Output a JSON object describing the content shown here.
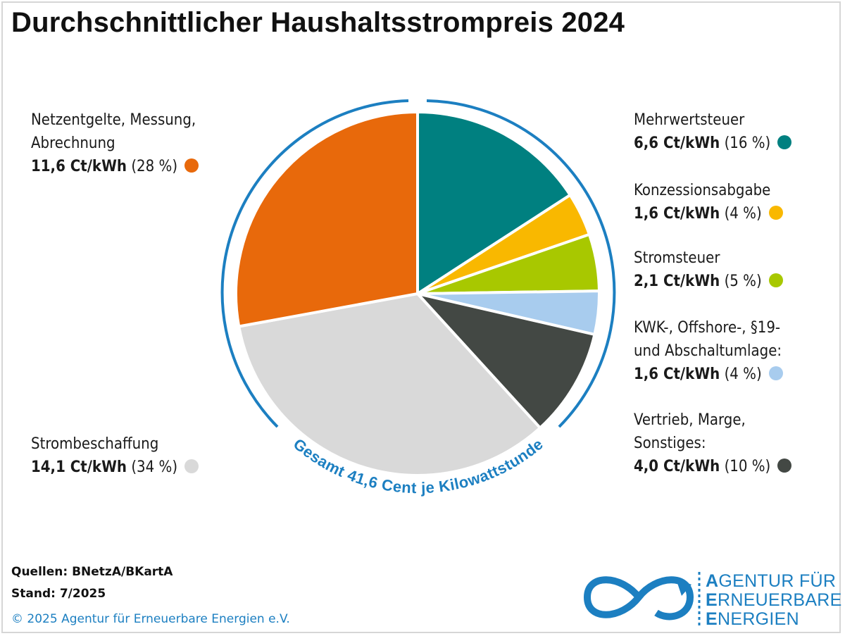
{
  "title": "Durchschnittlicher Haushaltsstrompreis 2024",
  "chart_data": {
    "type": "pie",
    "title": "Durchschnittlicher Haushaltsstrompreis 2024",
    "unit": "Ct/kWh",
    "total_label": "Gesamt 41,6 Cent je Kilowattstunde",
    "slices": [
      {
        "label": "Mehrwertsteuer",
        "value": 6.6,
        "percent": 16,
        "value_text": "6,6 Ct/kWh",
        "percent_text": "(16 %)",
        "color": "#008080"
      },
      {
        "label": "Konzessionsabgabe",
        "value": 1.6,
        "percent": 4,
        "value_text": "1,6 Ct/kWh",
        "percent_text": "(4 %)",
        "color": "#f9b800"
      },
      {
        "label": "Stromsteuer",
        "value": 2.1,
        "percent": 5,
        "value_text": "2,1 Ct/kWh",
        "percent_text": "(5 %)",
        "color": "#a8c800"
      },
      {
        "label": "KWK-, Offshore-, §19-und Abschaltumlage:",
        "value": 1.6,
        "percent": 4,
        "value_text": "1,6 Ct/kWh",
        "percent_text": "(4 %)",
        "color": "#a8ccee"
      },
      {
        "label": "Vertrieb, Marge, Sonstiges:",
        "value": 4.0,
        "percent": 10,
        "value_text": "4,0 Ct/kWh",
        "percent_text": "(10 %)",
        "color": "#434844"
      },
      {
        "label": "Strombeschaffung",
        "value": 14.1,
        "percent": 34,
        "value_text": "14,1 Ct/kWh",
        "percent_text": "(34 %)",
        "color": "#d9d9d9"
      },
      {
        "label": "Netzentgelte, Messung, Abrechnung",
        "value": 11.6,
        "percent": 28,
        "value_text": "11,6 Ct/kWh",
        "percent_text": "(28 %)",
        "color": "#e8690b"
      }
    ]
  },
  "legend": {
    "netz": {
      "line1": "Netzentgelte, Messung,",
      "line2": "Abrechnung",
      "value": "11,6 Ct/kWh",
      "pct": "(28 %)"
    },
    "beschaffung": {
      "line1": "Strombeschaffung",
      "value": "14,1 Ct/kWh",
      "pct": "(34 %)"
    },
    "mwst": {
      "line1": "Mehrwertsteuer",
      "value": "6,6 Ct/kWh",
      "pct": "(16 %)"
    },
    "konz": {
      "line1": "Konzessionsabgabe",
      "value": "1,6 Ct/kWh",
      "pct": "(4 %)"
    },
    "stromsteuer": {
      "line1": "Stromsteuer",
      "value": "2,1 Ct/kWh",
      "pct": "(5 %)"
    },
    "kwk": {
      "line1": "KWK-, Offshore-, §19-",
      "line2": "und Abschaltumlage:",
      "value": "1,6 Ct/kWh",
      "pct": "(4 %)"
    },
    "vertrieb": {
      "line1": "Vertrieb, Marge,",
      "line2": "Sonstiges:",
      "value": "4,0 Ct/kWh",
      "pct": "(10 %)"
    }
  },
  "footer": {
    "sources": "Quellen: BNetzA/BKartA",
    "stand": "Stand: 7/2025",
    "copyright": "© 2025 Agentur für Erneuerbare Energien e.V."
  },
  "logo": {
    "line1_initial": "A",
    "line1_rest": "GENTUR FÜR",
    "line2_initial": "E",
    "line2_rest": "RNEUERBARE",
    "line3_initial": "E",
    "line3_rest": "NERGIEN"
  },
  "colors": {
    "accent_blue": "#1c7fc1"
  }
}
